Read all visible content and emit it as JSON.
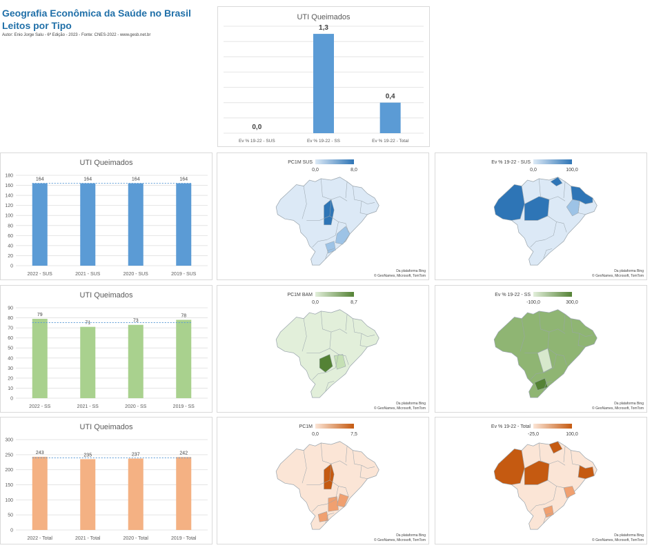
{
  "header": {
    "title1": "Geografia Econômica da Saúde no Brasil",
    "title2": "Leitos por Tipo",
    "subtitle": "Autor: Enio Jorge Salu - 6ª Edição - 2023 - Fonte: CNES-2022 - www.gesb.net.br"
  },
  "colors": {
    "blue": "#5b9bd5",
    "green": "#a9d18e",
    "orange": "#f4b183",
    "blue_dark": "#2e75b6",
    "green_dark": "#548235",
    "orange_dark": "#c55a11"
  },
  "chart_data": [
    {
      "type": "bar",
      "title": "UTI Queimados",
      "categories": [
        "Ev % 19-22 - SUS",
        "Ev % 19-22 - SS",
        "Ev % 19-22 - Total"
      ],
      "values": [
        0.0,
        1.3,
        0.4
      ],
      "labels": [
        "0,0",
        "1,3",
        "0,4"
      ],
      "ylim": [
        0,
        1.4
      ],
      "grid": true,
      "color": "#5b9bd5"
    },
    {
      "type": "bar",
      "title": "UTI Queimados",
      "categories": [
        "2022 - SUS",
        "2021 - SUS",
        "2020 - SUS",
        "2019 - SUS"
      ],
      "values": [
        164,
        164,
        164,
        164
      ],
      "labels": [
        "164",
        "164",
        "164",
        "164"
      ],
      "yticks": [
        "0",
        "20",
        "40",
        "60",
        "80",
        "100",
        "120",
        "140",
        "160",
        "180"
      ],
      "ylim": [
        0,
        180
      ],
      "average": 164,
      "grid": true,
      "color": "#5b9bd5"
    },
    {
      "type": "bar",
      "title": "UTI Queimados",
      "categories": [
        "2022 - SS",
        "2021 - SS",
        "2020 - SS",
        "2019 - SS"
      ],
      "values": [
        79,
        71,
        73,
        78
      ],
      "labels": [
        "79",
        "71",
        "73",
        "78"
      ],
      "yticks": [
        "0",
        "10",
        "20",
        "30",
        "40",
        "50",
        "60",
        "70",
        "80",
        "90"
      ],
      "ylim": [
        0,
        90
      ],
      "average": 75.25,
      "grid": true,
      "color": "#a9d18e"
    },
    {
      "type": "bar",
      "title": "UTI Queimados",
      "categories": [
        "2022 - Total",
        "2021 - Total",
        "2020 - Total",
        "2019 - Total"
      ],
      "values": [
        243,
        235,
        237,
        242
      ],
      "labels": [
        "243",
        "235",
        "237",
        "242"
      ],
      "yticks": [
        "0",
        "50",
        "100",
        "150",
        "200",
        "250",
        "300"
      ],
      "ylim": [
        0,
        300
      ],
      "average": 239.25,
      "grid": true,
      "color": "#f4b183"
    }
  ],
  "maps": [
    {
      "name": "map-pc1m-sus",
      "legend_title": "PC1M SUS",
      "min": "0,0",
      "max": "8,0",
      "light": "#dce9f6",
      "dark": "#2e75b6"
    },
    {
      "name": "map-ev-sus",
      "legend_title": "Ev % 19-22 - SUS",
      "min": "0,0",
      "max": "100,0",
      "light": "#dce9f6",
      "dark": "#2e75b6"
    },
    {
      "name": "map-pc1m-bam",
      "legend_title": "PC1M BAM",
      "min": "0,0",
      "max": "8,7",
      "light": "#e2efda",
      "dark": "#548235"
    },
    {
      "name": "map-ev-ss",
      "legend_title": "Ev % 19-22 - SS",
      "min": "-100,0",
      "max": "300,0",
      "light": "#e2efda",
      "dark": "#548235"
    },
    {
      "name": "map-pc1m",
      "legend_title": "PC1M",
      "min": "0,0",
      "max": "7,5",
      "light": "#fbe5d6",
      "dark": "#c55a11"
    },
    {
      "name": "map-ev-total",
      "legend_title": "Ev % 19-22 - Total",
      "min": "-25,0",
      "max": "100,0",
      "light": "#fbe5d6",
      "dark": "#c55a11"
    }
  ],
  "attribution": {
    "line1": "Da plataforma Bing",
    "line2": "© GeoNames, Microsoft, TomTom"
  }
}
